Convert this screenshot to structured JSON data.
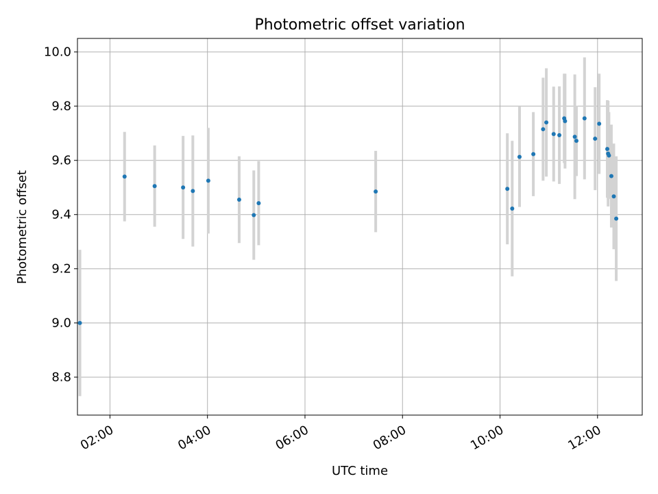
{
  "chart_data": {
    "type": "scatter",
    "title": "Photometric offset variation",
    "xlabel": "UTC time",
    "ylabel": "Photometric offset",
    "xlim": [
      "01:20",
      "12:55"
    ],
    "ylim": [
      8.66,
      10.05
    ],
    "xticks": [
      "02:00",
      "04:00",
      "06:00",
      "08:00",
      "10:00",
      "12:00"
    ],
    "yticks": [
      "8.8",
      "9.0",
      "9.2",
      "9.4",
      "9.6",
      "9.8",
      "10.0"
    ],
    "grid": true,
    "colors": {
      "point": "#1f77b4",
      "errorbar": "#d3d3d3",
      "grid": "#b0b0b0"
    },
    "series": [
      {
        "points": [
          {
            "x": "01:23",
            "y": 9.0,
            "err": 0.27
          },
          {
            "x": "02:18",
            "y": 9.54,
            "err": 0.165
          },
          {
            "x": "02:55",
            "y": 9.505,
            "err": 0.15
          },
          {
            "x": "03:30",
            "y": 9.5,
            "err": 0.19
          },
          {
            "x": "03:42",
            "y": 9.487,
            "err": 0.205
          },
          {
            "x": "04:01",
            "y": 9.525,
            "err": 0.195
          },
          {
            "x": "04:39",
            "y": 9.455,
            "err": 0.16
          },
          {
            "x": "04:57",
            "y": 9.398,
            "err": 0.165
          },
          {
            "x": "05:03",
            "y": 9.442,
            "err": 0.155
          },
          {
            "x": "07:27",
            "y": 9.485,
            "err": 0.15
          },
          {
            "x": "10:09",
            "y": 9.495,
            "err": 0.205
          },
          {
            "x": "10:15",
            "y": 9.422,
            "err": 0.25
          },
          {
            "x": "10:24",
            "y": 9.613,
            "err": 0.185
          },
          {
            "x": "10:41",
            "y": 9.623,
            "err": 0.155
          },
          {
            "x": "10:53",
            "y": 9.715,
            "err": 0.19
          },
          {
            "x": "10:57",
            "y": 9.74,
            "err": 0.2
          },
          {
            "x": "11:06",
            "y": 9.697,
            "err": 0.175
          },
          {
            "x": "11:13",
            "y": 9.693,
            "err": 0.18
          },
          {
            "x": "11:19",
            "y": 9.755,
            "err": 0.165
          },
          {
            "x": "11:20",
            "y": 9.745,
            "err": 0.175
          },
          {
            "x": "11:32",
            "y": 9.687,
            "err": 0.23
          },
          {
            "x": "11:34",
            "y": 9.672,
            "err": 0.13
          },
          {
            "x": "11:44",
            "y": 9.755,
            "err": 0.225
          },
          {
            "x": "11:57",
            "y": 9.68,
            "err": 0.19
          },
          {
            "x": "12:02",
            "y": 9.735,
            "err": 0.185
          },
          {
            "x": "12:12",
            "y": 9.642,
            "err": 0.18
          },
          {
            "x": "12:13",
            "y": 9.625,
            "err": 0.195
          },
          {
            "x": "12:14",
            "y": 9.618,
            "err": 0.16
          },
          {
            "x": "12:17",
            "y": 9.542,
            "err": 0.19
          },
          {
            "x": "12:20",
            "y": 9.467,
            "err": 0.195
          },
          {
            "x": "12:23",
            "y": 9.385,
            "err": 0.23
          }
        ]
      }
    ]
  }
}
